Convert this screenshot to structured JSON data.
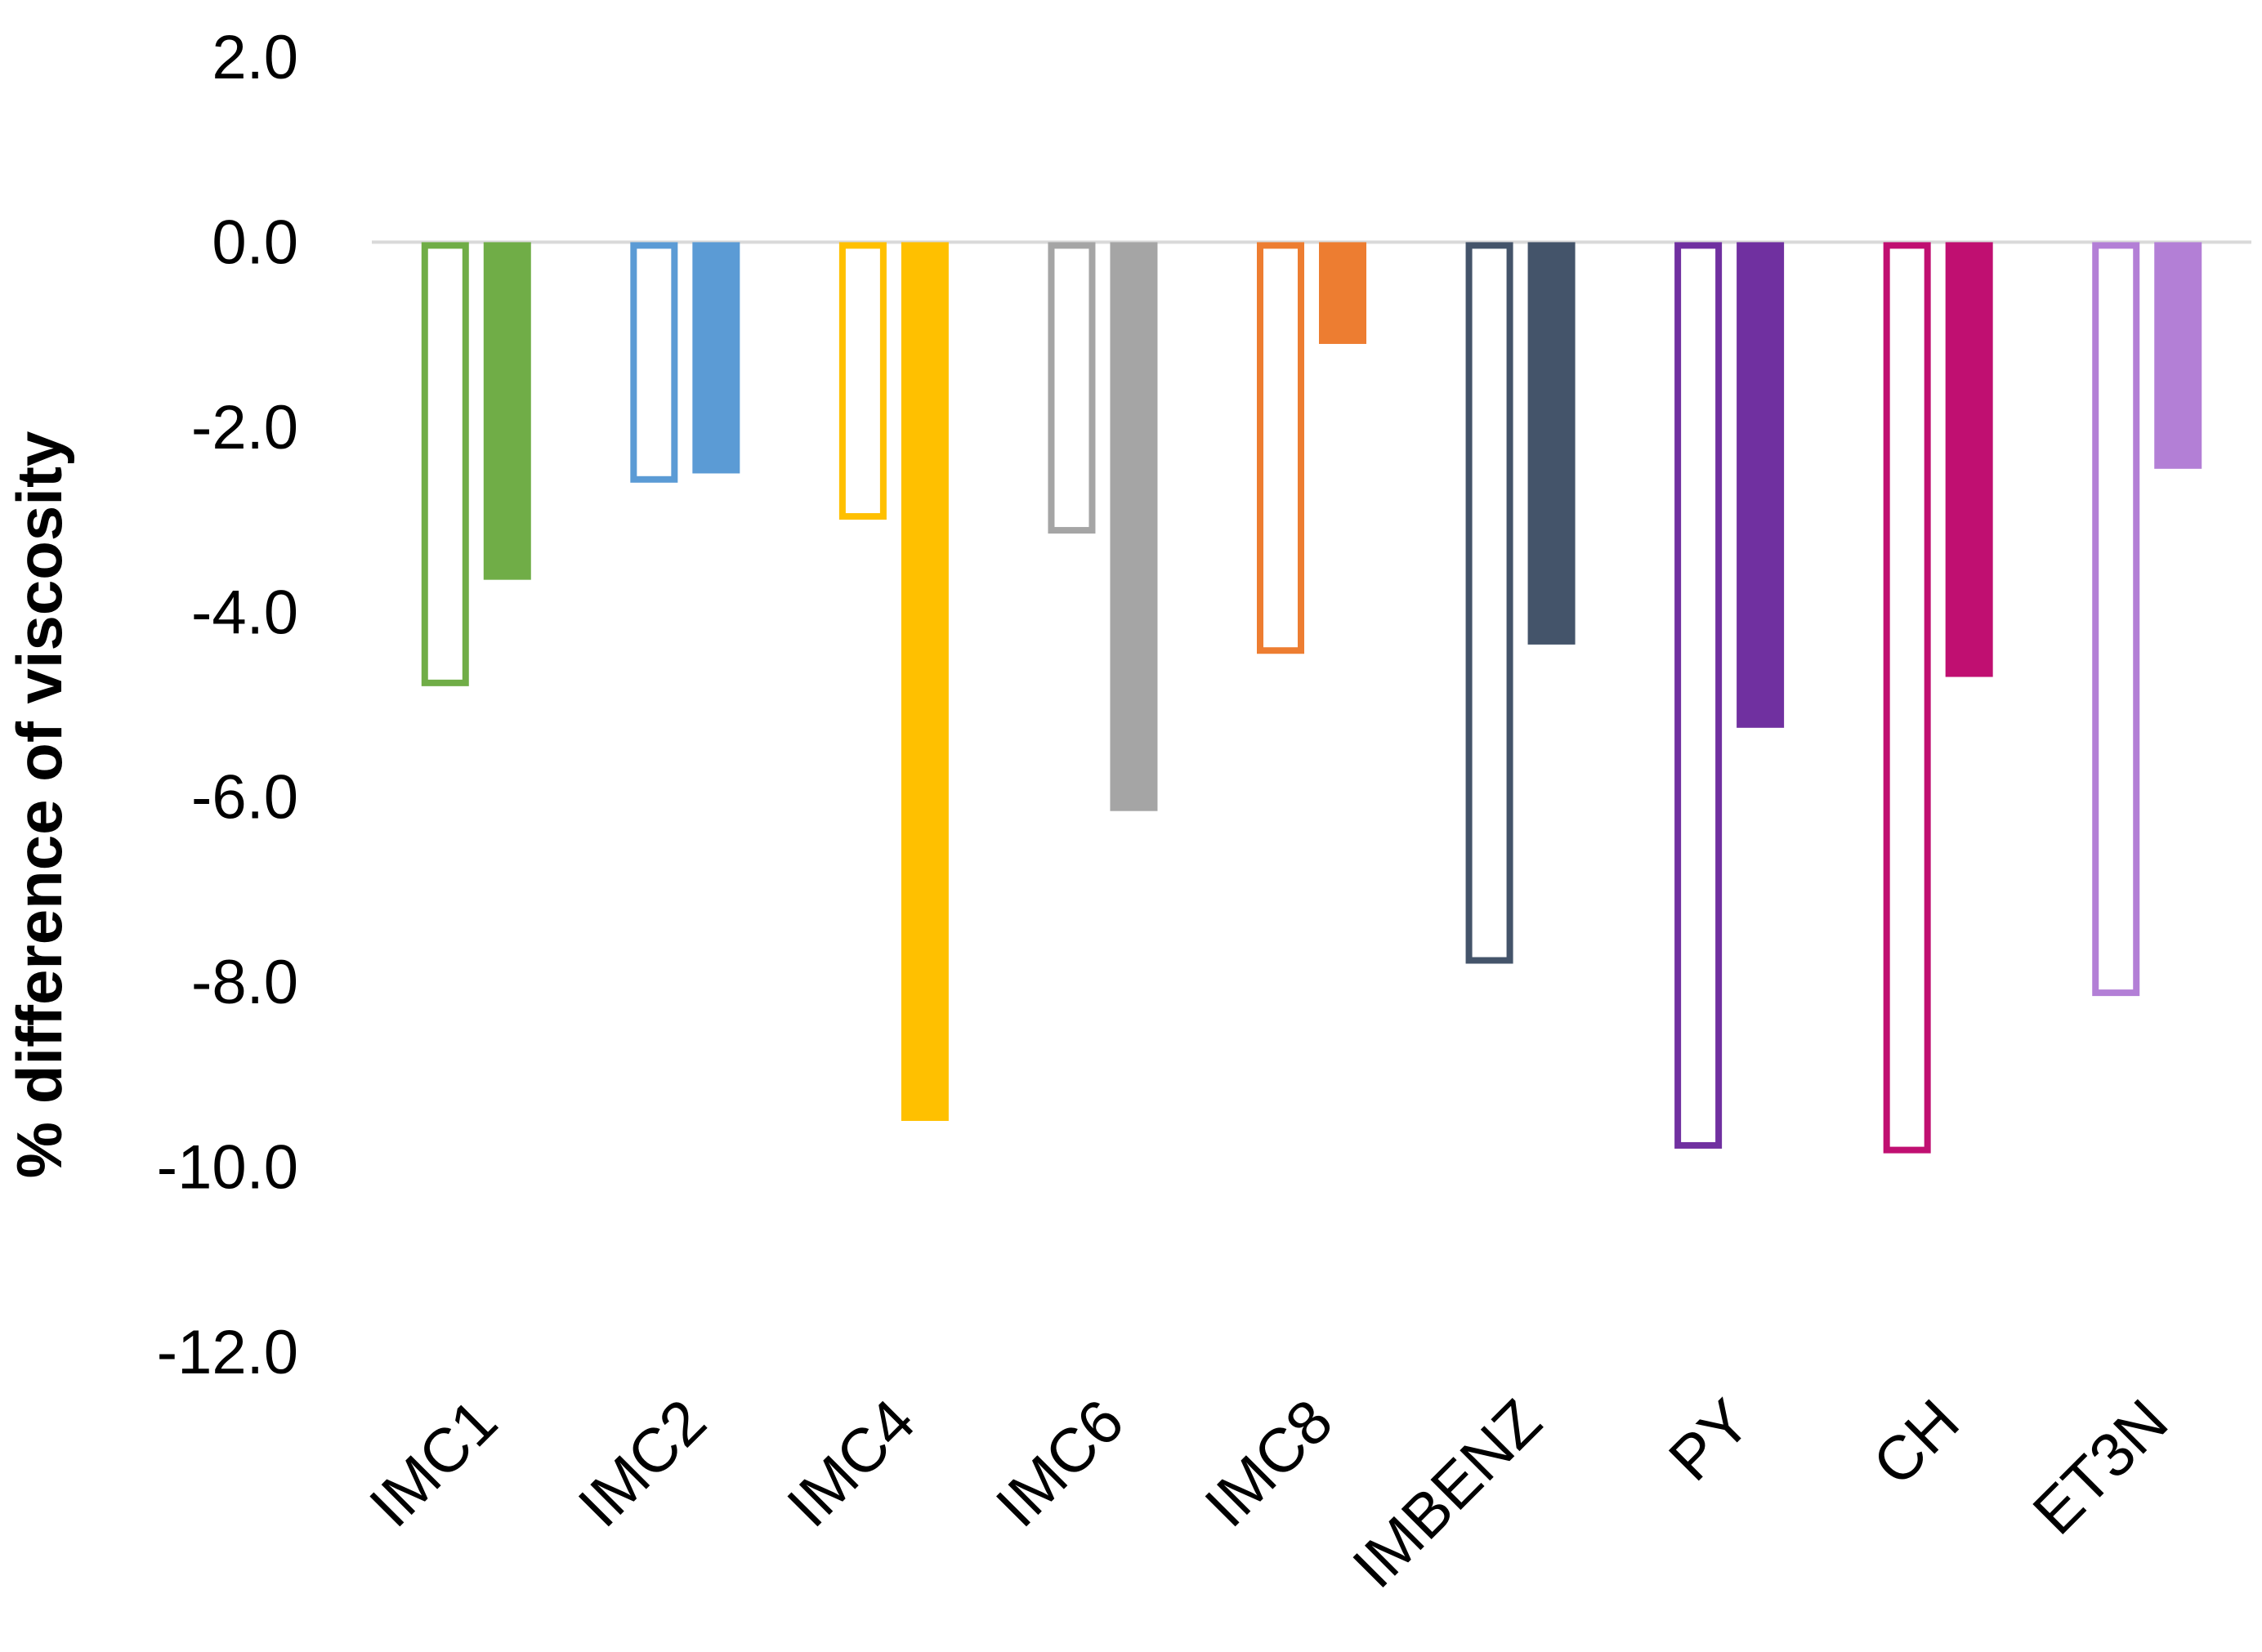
{
  "chart_data": {
    "type": "bar",
    "title": "",
    "xlabel": "",
    "ylabel": "% difference of viscosity",
    "ylim": [
      -12.0,
      2.0
    ],
    "yticks": [
      "2.0",
      "0.0",
      "-2.0",
      "-4.0",
      "-6.0",
      "-8.0",
      "-10.0",
      "-12.0"
    ],
    "grid": false,
    "legend": "none",
    "categories": [
      "IMC1",
      "IMC2",
      "IMC4",
      "IMC6",
      "IMC8",
      "IMBENZ",
      "PY",
      "CH",
      "ET3N"
    ],
    "colors": [
      "#70ad47",
      "#5b9bd5",
      "#ffc000",
      "#a5a5a5",
      "#ed7d31",
      "#44546a",
      "#7030a0",
      "#c00f71",
      "#b37fd6"
    ],
    "series": [
      {
        "style": "outline",
        "values": [
          -4.8,
          -2.6,
          -3.0,
          -3.15,
          -4.45,
          -7.8,
          -9.8,
          -9.85,
          -8.15
        ]
      },
      {
        "style": "filled",
        "values": [
          -3.65,
          -2.5,
          -9.5,
          -6.15,
          -1.1,
          -4.35,
          -5.25,
          -4.7,
          -2.45
        ]
      }
    ]
  }
}
